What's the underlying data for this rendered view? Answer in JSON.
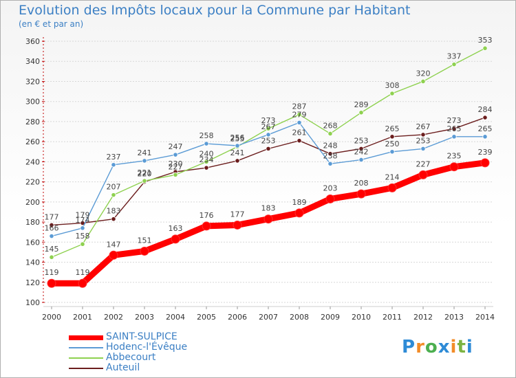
{
  "chart_data": {
    "type": "line",
    "title": "Evolution des Impôts locaux pour la Commune par Habitant",
    "subtitle": "(en € et par an)",
    "categories": [
      "2000",
      "2001",
      "2002",
      "2003",
      "2004",
      "2005",
      "2006",
      "2007",
      "2008",
      "2009",
      "2010",
      "2011",
      "2012",
      "2013",
      "2014"
    ],
    "ylim": [
      100,
      360
    ],
    "yticks": [
      100,
      120,
      140,
      160,
      180,
      200,
      220,
      240,
      260,
      280,
      300,
      320,
      340,
      360
    ],
    "series": [
      {
        "name": "Auteuil",
        "color": "#6b1d1d",
        "values": [
          177,
          179,
          183,
          220,
          230,
          234,
          241,
          253,
          261,
          248,
          253,
          265,
          267,
          273,
          284
        ]
      },
      {
        "name": "Abbecourt",
        "color": "#8ed14f",
        "values": [
          145,
          158,
          207,
          221,
          227,
          240,
          255,
          273,
          287,
          268,
          289,
          308,
          320,
          337,
          353
        ]
      },
      {
        "name": "Hodenc-l'Évêque",
        "color": "#5b9bd5",
        "values": [
          166,
          174,
          237,
          241,
          247,
          258,
          256,
          267,
          279,
          238,
          242,
          250,
          253,
          265,
          265
        ]
      },
      {
        "name": "SAINT-SULPICE",
        "color": "#ff0000",
        "values": [
          119,
          119,
          147,
          151,
          163,
          176,
          177,
          183,
          189,
          203,
          208,
          214,
          227,
          235,
          239
        ]
      }
    ],
    "legend_order": [
      "SAINT-SULPICE",
      "Hodenc-l'Évêque",
      "Abbecourt",
      "Auteuil"
    ],
    "legend_placement": "bottom-left"
  },
  "logo": {
    "text": "Proxiti"
  }
}
